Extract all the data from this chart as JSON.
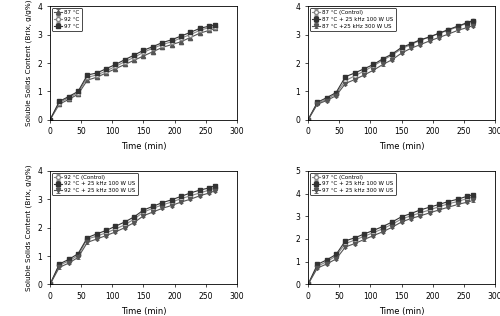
{
  "time": [
    0,
    15,
    30,
    45,
    60,
    75,
    90,
    105,
    120,
    135,
    150,
    165,
    180,
    195,
    210,
    225,
    240,
    255,
    265
  ],
  "panel_top_left": {
    "legend_labels": [
      "87 °C",
      "92 °C",
      "97 °C"
    ],
    "markers": [
      "^",
      "o",
      "s"
    ],
    "series": [
      [
        0,
        0.55,
        0.72,
        0.9,
        1.4,
        1.5,
        1.65,
        1.8,
        1.95,
        2.1,
        2.25,
        2.4,
        2.55,
        2.65,
        2.75,
        2.9,
        3.05,
        3.15,
        3.22
      ],
      [
        0,
        0.6,
        0.78,
        0.95,
        1.5,
        1.58,
        1.72,
        1.88,
        2.05,
        2.2,
        2.38,
        2.52,
        2.65,
        2.75,
        2.88,
        3.0,
        3.15,
        3.25,
        3.28
      ],
      [
        0,
        0.65,
        0.82,
        1.0,
        1.58,
        1.65,
        1.8,
        1.95,
        2.12,
        2.28,
        2.45,
        2.58,
        2.72,
        2.82,
        2.95,
        3.08,
        3.22,
        3.3,
        3.35
      ]
    ],
    "errors": [
      [
        0,
        0.04,
        0.04,
        0.04,
        0.05,
        0.04,
        0.04,
        0.04,
        0.04,
        0.04,
        0.04,
        0.04,
        0.04,
        0.04,
        0.04,
        0.04,
        0.04,
        0.04,
        0.04
      ],
      [
        0,
        0.04,
        0.04,
        0.04,
        0.05,
        0.04,
        0.04,
        0.04,
        0.04,
        0.04,
        0.04,
        0.04,
        0.04,
        0.04,
        0.04,
        0.04,
        0.04,
        0.04,
        0.04
      ],
      [
        0,
        0.04,
        0.04,
        0.04,
        0.05,
        0.04,
        0.04,
        0.04,
        0.04,
        0.04,
        0.04,
        0.04,
        0.04,
        0.04,
        0.04,
        0.04,
        0.04,
        0.04,
        0.04
      ]
    ],
    "colors": [
      "#555555",
      "#888888",
      "#333333"
    ],
    "fillstyles": [
      "full",
      "none",
      "full"
    ],
    "ylim": [
      0,
      4
    ],
    "yticks": [
      0,
      1,
      2,
      3,
      4
    ]
  },
  "panel_top_right": {
    "legend_labels": [
      "87 °C (Control)",
      "87 °C + 25 kHz 100 W US",
      "87 °C +25 kHz 300 W US"
    ],
    "markers": [
      "o",
      "s",
      "v"
    ],
    "series": [
      [
        0,
        0.58,
        0.72,
        0.92,
        1.38,
        1.55,
        1.72,
        1.9,
        2.1,
        2.28,
        2.5,
        2.65,
        2.8,
        2.92,
        3.05,
        3.15,
        3.28,
        3.4,
        3.48
      ],
      [
        0,
        0.62,
        0.78,
        0.96,
        1.52,
        1.65,
        1.8,
        1.95,
        2.15,
        2.32,
        2.55,
        2.68,
        2.82,
        2.92,
        3.05,
        3.18,
        3.3,
        3.42,
        3.5
      ],
      [
        0,
        0.55,
        0.68,
        0.85,
        1.28,
        1.42,
        1.58,
        1.75,
        1.95,
        2.12,
        2.35,
        2.52,
        2.65,
        2.78,
        2.9,
        3.02,
        3.15,
        3.25,
        3.32
      ]
    ],
    "errors": [
      [
        0,
        0.05,
        0.04,
        0.04,
        0.05,
        0.04,
        0.04,
        0.04,
        0.04,
        0.04,
        0.04,
        0.04,
        0.04,
        0.04,
        0.04,
        0.04,
        0.04,
        0.04,
        0.04
      ],
      [
        0,
        0.04,
        0.04,
        0.04,
        0.05,
        0.04,
        0.04,
        0.04,
        0.04,
        0.04,
        0.04,
        0.04,
        0.04,
        0.04,
        0.04,
        0.04,
        0.04,
        0.04,
        0.04
      ],
      [
        0,
        0.04,
        0.04,
        0.04,
        0.05,
        0.04,
        0.04,
        0.04,
        0.04,
        0.04,
        0.04,
        0.04,
        0.04,
        0.04,
        0.04,
        0.04,
        0.04,
        0.04,
        0.04
      ]
    ],
    "colors": [
      "#888888",
      "#333333",
      "#555555"
    ],
    "fillstyles": [
      "none",
      "full",
      "full"
    ],
    "ylim": [
      0,
      4
    ],
    "yticks": [
      0,
      1,
      2,
      3,
      4
    ]
  },
  "panel_bottom_left": {
    "legend_labels": [
      "92 °C (Control)",
      "92 °C + 25 kHz 100 W US",
      "92 °C + 25 kHz 300 W US"
    ],
    "markers": [
      "o",
      "s",
      "v"
    ],
    "series": [
      [
        0,
        0.68,
        0.82,
        1.02,
        1.6,
        1.7,
        1.82,
        1.95,
        2.1,
        2.3,
        2.55,
        2.68,
        2.8,
        2.9,
        3.02,
        3.12,
        3.22,
        3.32,
        3.4
      ],
      [
        0,
        0.72,
        0.88,
        1.08,
        1.65,
        1.78,
        1.9,
        2.05,
        2.2,
        2.38,
        2.62,
        2.75,
        2.88,
        2.98,
        3.1,
        3.22,
        3.32,
        3.4,
        3.48
      ],
      [
        0,
        0.6,
        0.75,
        0.95,
        1.48,
        1.6,
        1.72,
        1.85,
        2.0,
        2.18,
        2.42,
        2.55,
        2.68,
        2.78,
        2.9,
        3.0,
        3.12,
        3.22,
        3.3
      ]
    ],
    "errors": [
      [
        0,
        0.04,
        0.04,
        0.04,
        0.05,
        0.04,
        0.04,
        0.04,
        0.04,
        0.04,
        0.04,
        0.04,
        0.04,
        0.04,
        0.04,
        0.04,
        0.04,
        0.04,
        0.04
      ],
      [
        0,
        0.04,
        0.04,
        0.04,
        0.05,
        0.04,
        0.04,
        0.04,
        0.04,
        0.04,
        0.04,
        0.04,
        0.04,
        0.04,
        0.04,
        0.04,
        0.04,
        0.04,
        0.04
      ],
      [
        0,
        0.04,
        0.04,
        0.04,
        0.05,
        0.04,
        0.04,
        0.04,
        0.04,
        0.04,
        0.04,
        0.04,
        0.04,
        0.04,
        0.04,
        0.04,
        0.04,
        0.04,
        0.04
      ]
    ],
    "colors": [
      "#888888",
      "#333333",
      "#555555"
    ],
    "fillstyles": [
      "none",
      "full",
      "full"
    ],
    "ylim": [
      0,
      4
    ],
    "yticks": [
      0,
      1,
      2,
      3,
      4
    ]
  },
  "panel_bottom_right": {
    "legend_labels": [
      "97 °C (Control)",
      "97 °C + 25 kHz 100 W US",
      "97 °C + 25 kHz 300 W US"
    ],
    "markers": [
      "o",
      "s",
      "v"
    ],
    "series": [
      [
        0,
        0.8,
        1.0,
        1.25,
        1.8,
        1.95,
        2.12,
        2.28,
        2.45,
        2.65,
        2.88,
        3.02,
        3.15,
        3.28,
        3.42,
        3.55,
        3.65,
        3.78,
        3.85
      ],
      [
        0,
        0.88,
        1.08,
        1.32,
        1.92,
        2.05,
        2.22,
        2.38,
        2.55,
        2.75,
        2.98,
        3.12,
        3.28,
        3.4,
        3.52,
        3.65,
        3.75,
        3.88,
        3.95
      ],
      [
        0,
        0.72,
        0.9,
        1.12,
        1.65,
        1.8,
        1.98,
        2.15,
        2.32,
        2.52,
        2.75,
        2.9,
        3.02,
        3.15,
        3.28,
        3.4,
        3.52,
        3.62,
        3.7
      ]
    ],
    "errors": [
      [
        0,
        0.05,
        0.05,
        0.05,
        0.06,
        0.05,
        0.05,
        0.05,
        0.05,
        0.05,
        0.05,
        0.05,
        0.05,
        0.05,
        0.05,
        0.05,
        0.05,
        0.05,
        0.05
      ],
      [
        0,
        0.05,
        0.05,
        0.05,
        0.06,
        0.05,
        0.05,
        0.05,
        0.05,
        0.05,
        0.05,
        0.05,
        0.05,
        0.05,
        0.05,
        0.05,
        0.05,
        0.05,
        0.05
      ],
      [
        0,
        0.05,
        0.05,
        0.05,
        0.06,
        0.05,
        0.05,
        0.05,
        0.05,
        0.05,
        0.05,
        0.05,
        0.05,
        0.05,
        0.05,
        0.05,
        0.05,
        0.05,
        0.05
      ]
    ],
    "colors": [
      "#888888",
      "#333333",
      "#555555"
    ],
    "fillstyles": [
      "none",
      "full",
      "full"
    ],
    "ylim": [
      0,
      5
    ],
    "yticks": [
      0,
      1,
      2,
      3,
      4,
      5
    ]
  },
  "xlabel": "Time (min)",
  "ylabel": "Soluble Solids Content (Brix, g/g%)",
  "xlim": [
    0,
    290
  ],
  "xticks": [
    0,
    50,
    100,
    150,
    200,
    250,
    300
  ]
}
